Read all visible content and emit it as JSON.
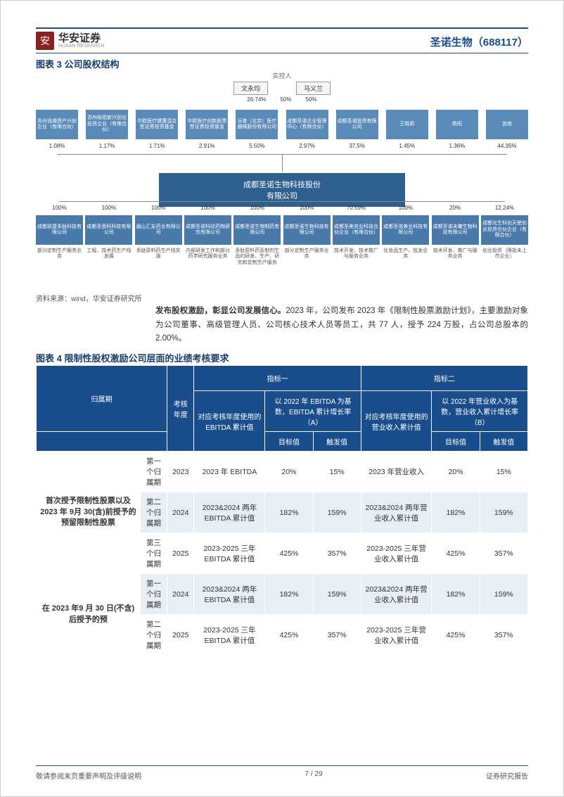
{
  "header": {
    "logo_char": "安",
    "logo_text": "华安证券",
    "logo_sub": "HUAAN RESEARCH",
    "company": "圣诺生物（688117）"
  },
  "fig3": {
    "title": "图表 3 公司股权结构",
    "controller_label": "实控人",
    "controllers": [
      "文永均",
      "马义兰"
    ],
    "ctrl_pct": [
      "26.74%",
      "50%",
      "50%"
    ],
    "holders": [
      {
        "name": "苏州浩瀚资产兴创企业（有限合伙）",
        "pct": "1.08%"
      },
      {
        "name": "苏州裕佑新兴创业投资企业（有限合伙）",
        "pct": "1.17%"
      },
      {
        "name": "中欧医疗健康混合型证券投资基金",
        "pct": "1.71%"
      },
      {
        "name": "中欧医疗创新股票型证券投资基金",
        "pct": "2.91%"
      },
      {
        "name": "乐普（北京）医疗器械股份有限公司",
        "pct": "5.50%"
      },
      {
        "name": "成都圣诺企业管理中心（有限合伙）",
        "pct": "2.97%"
      },
      {
        "name": "成都圣诺投资有限公司",
        "pct": "37.5%"
      },
      {
        "name": "王晓莉",
        "pct": "1.45%"
      },
      {
        "name": "杨阳",
        "pct": "1.36%"
      },
      {
        "name": "其他",
        "pct": "44.35%"
      }
    ],
    "main": "成都圣诺生物科技股份有限公司",
    "subs": [
      {
        "pct": "100%",
        "name": "成都凯捷多肽科技有限公司",
        "desc": "部分定制生产服务业务"
      },
      {
        "pct": "100%",
        "name": "成都圣思科科技有限公司",
        "desc": "工程、技术药生产线发展"
      },
      {
        "pct": "100%",
        "name": "眉山汇友药业有限公司",
        "desc": "多肽原料药生产线实施"
      },
      {
        "pct": "100%",
        "name": "成都圣诺科欣药物研究有限公司",
        "desc": "内部研发工作和部分药学研究服务业务"
      },
      {
        "pct": "100%",
        "name": "成都圣诺生物制药有限公司",
        "desc": "多肽原料药及制剂生品的研发、生产、研究和定制生产服务"
      },
      {
        "pct": "100%",
        "name": "成都圣诺生物科技有限公司",
        "desc": "部分定制生产服务业务"
      },
      {
        "pct": "70.59%",
        "name": "成都圣美克业科技合伙企业（有限合伙）",
        "desc": "技术开发、技术推广与服务业务"
      },
      {
        "pct": "100%",
        "name": "成都圣诺美业科技有限公司",
        "desc": "化妆品生产、批发业务"
      },
      {
        "pct": "20%",
        "name": "成都圣诺未曦生物科技有限公司",
        "desc": "技术开发、推广与服务业务"
      },
      {
        "pct": "12.24%",
        "name": "成都光生科创天使创业投资合伙企业（有限合伙）",
        "desc": "创业投资（限投未上市企业）"
      }
    ],
    "source": "资料来源：wind，华安证券研究所"
  },
  "body": "<b>发布股权激励，彰显公司发展信心。</b>2023 年，公司发布 2023 年《限制性股票激励计划》，主要激励对象为公司董事、高级管理人员、公司核心技术人员等员工，共 77 人，授予 224 万股，占公司总股本的 2.00%。",
  "fig4": {
    "title": "图表 4 限制性股权激励公司层面的业绩考核要求",
    "headers": {
      "c1": "归属期",
      "c2": "考核年度",
      "g1": "指标一",
      "g1a": "对应考核年度使用的 EBITDA 累计值",
      "g1b": "以 2022 年 EBITDA 为基数，EBITDA 累计增长率（A）",
      "g2": "指标二",
      "g2a": "对应考核年度使用的营业收入累计值",
      "g2b": "以 2022 年营业收入为基数，营业收入累计增长率（B）",
      "tgt": "目标值",
      "trg": "触发值"
    },
    "group1_label": "首次授予限制性股票以及2023 年 9月 30(含)前授予的预留限制性股票",
    "group2_label": "在 2023 年9 月 30 日(不含)后授予的预",
    "rows": [
      {
        "period": "第一个归属期",
        "year": "2023",
        "e_cum": "2023 年 EBITDA",
        "e_tgt": "20%",
        "e_trg": "15%",
        "r_cum": "2023 年营业收入",
        "r_tgt": "20%",
        "r_trg": "15%"
      },
      {
        "period": "第二个归属期",
        "year": "2024",
        "e_cum": "2023&2024 两年EBITDA 累计值",
        "e_tgt": "182%",
        "e_trg": "159%",
        "r_cum": "2023&2024 两年营业收入累计值",
        "r_tgt": "182%",
        "r_trg": "159%"
      },
      {
        "period": "第三个归属期",
        "year": "2025",
        "e_cum": "2023-2025 三年EBITDA 累计值",
        "e_tgt": "425%",
        "e_trg": "357%",
        "r_cum": "2023-2025 三年营业收入累计值",
        "r_tgt": "425%",
        "r_trg": "357%"
      },
      {
        "period": "第一个归属期",
        "year": "2024",
        "e_cum": "2023&2024 两年EBITDA 累计值",
        "e_tgt": "182%",
        "e_trg": "159%",
        "r_cum": "2023&2024 两年营业收入累计值",
        "r_tgt": "182%",
        "r_trg": "159%"
      },
      {
        "period": "第二个归属期",
        "year": "2025",
        "e_cum": "2023-2025 三年EBITDA 累计值",
        "e_tgt": "425%",
        "e_trg": "357%",
        "r_cum": "2023-2025 三年营业收入累计值",
        "r_tgt": "425%",
        "r_trg": "357%"
      }
    ]
  },
  "footer": {
    "left": "敬请参阅末页重要声明及评级说明",
    "center": "7 / 29",
    "right": "证券研究报告"
  },
  "colors": {
    "brand": "#1a4d8c",
    "logo": "#8b2020",
    "box1": "#5a8ab8",
    "box2": "#2d5f8f",
    "box3": "#4a7aaa"
  }
}
